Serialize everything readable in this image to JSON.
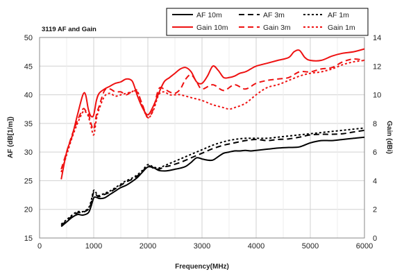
{
  "chart_data": {
    "type": "line",
    "title": "3119 AF and Gain",
    "xlabel": "Frequency(MHz)",
    "ylabel": "AF (dB[1/m])",
    "y2label": "Gain (dBi)",
    "xlim": [
      0,
      6000
    ],
    "ylim": [
      15,
      50
    ],
    "y2lim": [
      0,
      14
    ],
    "x_ticks": [
      "0",
      "1000",
      "2000",
      "3000",
      "4000",
      "5000",
      "6000"
    ],
    "y_ticks": [
      "15",
      "20",
      "25",
      "30",
      "35",
      "40",
      "45",
      "50"
    ],
    "y2_ticks": [
      "0",
      "2",
      "4",
      "6",
      "8",
      "10",
      "12",
      "14"
    ],
    "grid": true,
    "legend_position": "top-right",
    "series": [
      {
        "name": "AF 10m",
        "axis": "left",
        "color": "#000000",
        "dash": "solid",
        "x": [
          400,
          500,
          600,
          700,
          800,
          900,
          950,
          1000,
          1050,
          1100,
          1200,
          1300,
          1400,
          1500,
          1600,
          1700,
          1800,
          1900,
          2000,
          2100,
          2200,
          2300,
          2400,
          2500,
          2600,
          2700,
          2800,
          2900,
          3000,
          3100,
          3200,
          3300,
          3400,
          3500,
          3600,
          3700,
          3800,
          3900,
          4000,
          4200,
          4400,
          4600,
          4800,
          5000,
          5200,
          5400,
          5600,
          5800,
          6000
        ],
        "y": [
          17.0,
          17.8,
          18.6,
          19.1,
          19.0,
          19.4,
          20.5,
          22.0,
          22.1,
          21.9,
          22.0,
          22.6,
          23.2,
          23.8,
          24.2,
          24.8,
          25.5,
          26.5,
          27.4,
          27.3,
          26.8,
          26.7,
          26.8,
          27.0,
          27.2,
          27.5,
          28.2,
          29.0,
          28.8,
          28.6,
          28.6,
          29.2,
          29.8,
          30.0,
          30.2,
          30.2,
          30.3,
          30.2,
          30.3,
          30.5,
          30.7,
          30.8,
          30.9,
          31.6,
          32.0,
          32.0,
          32.2,
          32.4,
          32.6
        ]
      },
      {
        "name": "AF 3m",
        "axis": "left",
        "color": "#000000",
        "dash": "8,5",
        "x": [
          400,
          500,
          600,
          700,
          800,
          900,
          950,
          1000,
          1050,
          1100,
          1200,
          1300,
          1400,
          1500,
          1600,
          1700,
          1800,
          1900,
          2000,
          2100,
          2200,
          2300,
          2400,
          2600,
          2800,
          3000,
          3200,
          3400,
          3600,
          3800,
          4000,
          4200,
          4400,
          4600,
          4800,
          5000,
          5200,
          5400,
          5600,
          5800,
          6000
        ],
        "y": [
          17.2,
          18.0,
          18.8,
          19.4,
          19.5,
          20.0,
          21.0,
          23.0,
          22.5,
          22.2,
          22.6,
          23.0,
          23.6,
          24.2,
          24.8,
          25.2,
          25.8,
          26.6,
          27.6,
          27.2,
          27.0,
          27.4,
          27.6,
          28.2,
          29.0,
          29.8,
          30.6,
          31.2,
          31.6,
          32.0,
          32.2,
          32.0,
          32.2,
          32.3,
          32.6,
          33.0,
          33.1,
          33.1,
          33.2,
          33.5,
          33.8
        ]
      },
      {
        "name": "AF 1m",
        "axis": "left",
        "color": "#000000",
        "dash": "3,3",
        "x": [
          400,
          500,
          600,
          700,
          800,
          900,
          950,
          1000,
          1050,
          1100,
          1200,
          1300,
          1400,
          1500,
          1600,
          1700,
          1800,
          1900,
          2000,
          2100,
          2200,
          2300,
          2400,
          2600,
          2800,
          3000,
          3200,
          3400,
          3600,
          3800,
          4000,
          4200,
          4400,
          4600,
          4800,
          5000,
          5200,
          5400,
          5600,
          5800,
          6000
        ],
        "y": [
          17.4,
          18.2,
          19.0,
          19.6,
          19.6,
          20.2,
          21.4,
          23.3,
          22.8,
          22.4,
          22.8,
          23.2,
          23.8,
          24.4,
          25.0,
          25.4,
          26.0,
          26.8,
          27.8,
          27.4,
          27.2,
          27.6,
          28.0,
          28.8,
          29.6,
          30.4,
          31.2,
          31.8,
          32.2,
          32.4,
          32.4,
          32.4,
          32.6,
          32.8,
          33.0,
          33.2,
          33.4,
          33.6,
          33.8,
          34.0,
          34.2
        ]
      },
      {
        "name": "Gain 10m",
        "axis": "right",
        "color": "#ee1111",
        "dash": "solid",
        "x": [
          400,
          500,
          600,
          700,
          800,
          850,
          900,
          950,
          1000,
          1050,
          1100,
          1200,
          1300,
          1400,
          1500,
          1600,
          1700,
          1750,
          1800,
          1900,
          2000,
          2100,
          2200,
          2300,
          2400,
          2500,
          2600,
          2700,
          2800,
          2900,
          3000,
          3100,
          3200,
          3300,
          3400,
          3500,
          3600,
          3700,
          3800,
          3900,
          4000,
          4200,
          4400,
          4600,
          4700,
          4800,
          4900,
          5000,
          5200,
          5400,
          5600,
          5800,
          6000
        ],
        "y": [
          4.1,
          6.0,
          7.1,
          8.6,
          10.0,
          10.0,
          9.0,
          8.5,
          8.6,
          9.6,
          10.1,
          10.4,
          10.6,
          10.8,
          10.9,
          11.1,
          11.0,
          10.6,
          10.0,
          9.1,
          8.6,
          9.2,
          10.1,
          10.9,
          11.2,
          11.5,
          11.8,
          11.9,
          11.6,
          10.9,
          10.8,
          11.3,
          12.0,
          11.7,
          11.2,
          11.2,
          11.3,
          11.5,
          11.6,
          11.8,
          12.0,
          12.2,
          12.4,
          12.6,
          13.0,
          13.1,
          12.6,
          12.4,
          12.4,
          12.7,
          12.9,
          13.0,
          13.2
        ]
      },
      {
        "name": "Gain 3m",
        "axis": "right",
        "color": "#ee1111",
        "dash": "8,5",
        "x": [
          400,
          500,
          600,
          700,
          800,
          850,
          900,
          950,
          1000,
          1050,
          1100,
          1200,
          1300,
          1400,
          1500,
          1600,
          1700,
          1800,
          1900,
          2000,
          2100,
          2200,
          2300,
          2400,
          2500,
          2600,
          2700,
          2800,
          2900,
          3000,
          3200,
          3400,
          3600,
          3800,
          4000,
          4200,
          4400,
          4600,
          4800,
          5000,
          5200,
          5400,
          5600,
          5800,
          6000
        ],
        "y": [
          4.8,
          6.0,
          7.2,
          8.2,
          9.0,
          8.9,
          8.7,
          8.0,
          7.6,
          8.6,
          9.2,
          10.3,
          10.4,
          10.2,
          10.2,
          10.0,
          10.2,
          10.2,
          9.3,
          8.4,
          9.0,
          10.4,
          10.4,
          10.2,
          10.1,
          10.4,
          11.1,
          11.4,
          10.9,
          10.4,
          10.7,
          10.3,
          10.7,
          10.4,
          10.8,
          11.0,
          11.1,
          11.2,
          11.6,
          11.6,
          11.8,
          11.9,
          12.3,
          12.5,
          12.4
        ]
      },
      {
        "name": "Gain 1m",
        "axis": "right",
        "color": "#ee1111",
        "dash": "3,3",
        "x": [
          400,
          500,
          600,
          700,
          800,
          850,
          900,
          950,
          1000,
          1050,
          1100,
          1200,
          1300,
          1400,
          1500,
          1600,
          1700,
          1800,
          1900,
          2000,
          2100,
          2200,
          2300,
          2400,
          2500,
          2600,
          2800,
          3000,
          3200,
          3400,
          3500,
          3600,
          3800,
          4000,
          4200,
          4400,
          4600,
          4800,
          5000,
          5200,
          5400,
          5600,
          5800,
          6000
        ],
        "y": [
          4.6,
          5.8,
          7.0,
          8.0,
          8.8,
          8.8,
          8.5,
          7.8,
          7.2,
          8.3,
          9.0,
          9.9,
          10.1,
          9.9,
          10.0,
          10.1,
          10.2,
          10.3,
          9.2,
          8.4,
          8.9,
          10.0,
          10.2,
          10.0,
          10.0,
          10.0,
          9.8,
          9.6,
          9.3,
          9.1,
          9.0,
          9.1,
          9.4,
          10.0,
          10.5,
          10.7,
          11.0,
          11.3,
          11.5,
          11.6,
          11.8,
          12.1,
          12.3,
          12.4
        ]
      }
    ]
  }
}
